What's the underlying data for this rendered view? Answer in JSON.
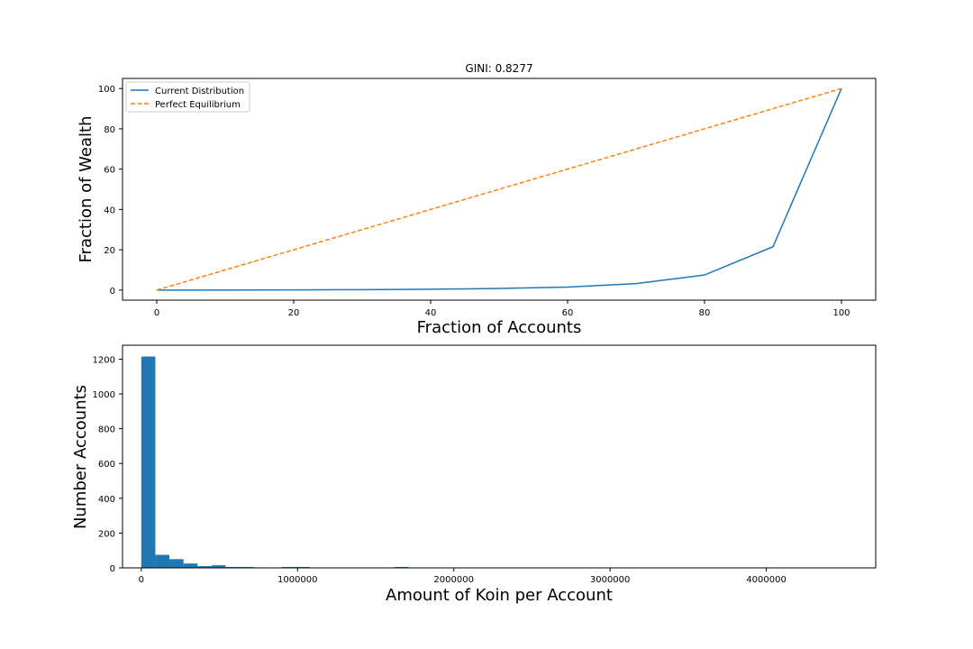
{
  "chart_data": [
    {
      "type": "line",
      "title": "GINI: 0.8277",
      "xlabel": "Fraction of Accounts",
      "ylabel": "Fraction of Wealth",
      "xlim": [
        -5,
        105
      ],
      "ylim": [
        -5,
        105
      ],
      "xticks": [
        "0",
        "20",
        "40",
        "60",
        "80",
        "100"
      ],
      "yticks": [
        "0",
        "20",
        "40",
        "60",
        "80",
        "100"
      ],
      "grid": false,
      "legend": "upper-left",
      "series": [
        {
          "name": "Current Distribution",
          "color": "#1f77b4",
          "style": "solid",
          "x": [
            0,
            10,
            20,
            30,
            40,
            50,
            60,
            70,
            80,
            90,
            100
          ],
          "y": [
            0,
            0.05,
            0.1,
            0.2,
            0.4,
            0.8,
            1.5,
            3.2,
            7.5,
            21.5,
            100
          ]
        },
        {
          "name": "Perfect Equilibrium",
          "color": "#ff7f0e",
          "style": "dashed",
          "x": [
            0,
            100
          ],
          "y": [
            0,
            100
          ]
        }
      ]
    },
    {
      "type": "bar",
      "title": "",
      "xlabel": "Amount of Koin per Account",
      "ylabel": "Number Accounts",
      "xlim": [
        -120000,
        4700000
      ],
      "ylim": [
        0,
        1280
      ],
      "xticks": [
        "0",
        "1000000",
        "2000000",
        "3000000",
        "4000000"
      ],
      "yticks": [
        "0",
        "200",
        "400",
        "600",
        "800",
        "1000",
        "1200"
      ],
      "grid": false,
      "color": "#1f77b4",
      "bin_width": 90000,
      "bin_starts": [
        0,
        90000,
        180000,
        270000,
        360000,
        450000,
        540000,
        630000,
        720000,
        900000,
        990000,
        1620000
      ],
      "counts": [
        1215,
        75,
        50,
        25,
        10,
        15,
        5,
        5,
        3,
        5,
        5,
        5
      ]
    }
  ]
}
